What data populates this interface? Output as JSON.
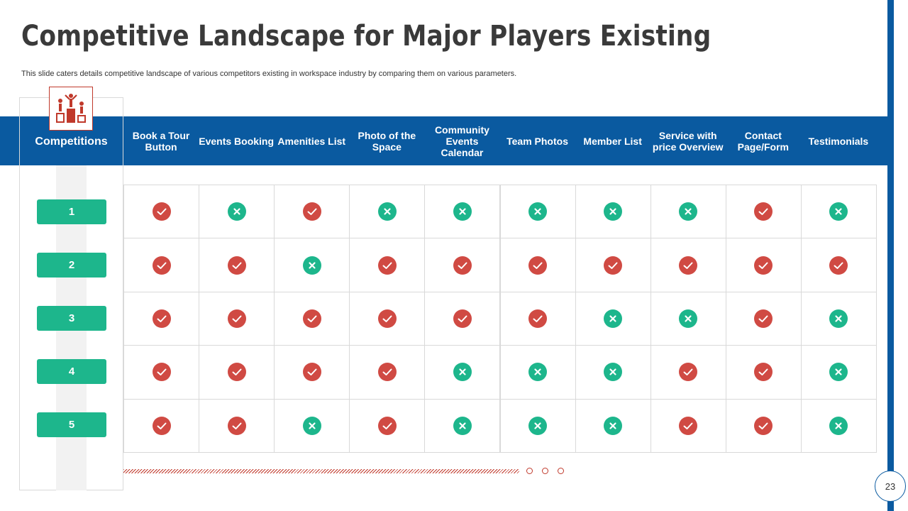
{
  "slide": {
    "title": "Competitive Landscape for Major Players Existing",
    "subtitle": "This slide caters details competitive landscape of various competitors existing in workspace industry by comparing them on various parameters.",
    "page_number": "23"
  },
  "table": {
    "row_header_label": "Competitions",
    "columns": [
      "Book a Tour Button",
      "Events Booking",
      "Amenities List",
      "Photo of the Space",
      "Community Events Calendar",
      "Team Photos",
      "Member List",
      "Service with price Overview",
      "Contact Page/Form",
      "Testimonials"
    ],
    "rows": [
      {
        "label": "1",
        "values": [
          "check",
          "cross",
          "check",
          "cross",
          "cross",
          "cross",
          "cross",
          "cross",
          "check",
          "cross"
        ]
      },
      {
        "label": "2",
        "values": [
          "check",
          "check",
          "cross",
          "check",
          "check",
          "check",
          "check",
          "check",
          "check",
          "check"
        ]
      },
      {
        "label": "3",
        "values": [
          "check",
          "check",
          "check",
          "check",
          "check",
          "check",
          "cross",
          "cross",
          "check",
          "cross"
        ]
      },
      {
        "label": "4",
        "values": [
          "check",
          "check",
          "check",
          "check",
          "cross",
          "cross",
          "cross",
          "check",
          "check",
          "cross"
        ]
      },
      {
        "label": "5",
        "values": [
          "check",
          "check",
          "cross",
          "check",
          "cross",
          "cross",
          "cross",
          "check",
          "check",
          "cross"
        ]
      }
    ]
  },
  "icons": {
    "check": "check-icon",
    "cross": "cross-icon",
    "header": "podium-icon"
  },
  "colors": {
    "primary_blue": "#0a5aa0",
    "check_red": "#d04a43",
    "cross_green": "#1db68c",
    "badge_green": "#1db68c"
  }
}
